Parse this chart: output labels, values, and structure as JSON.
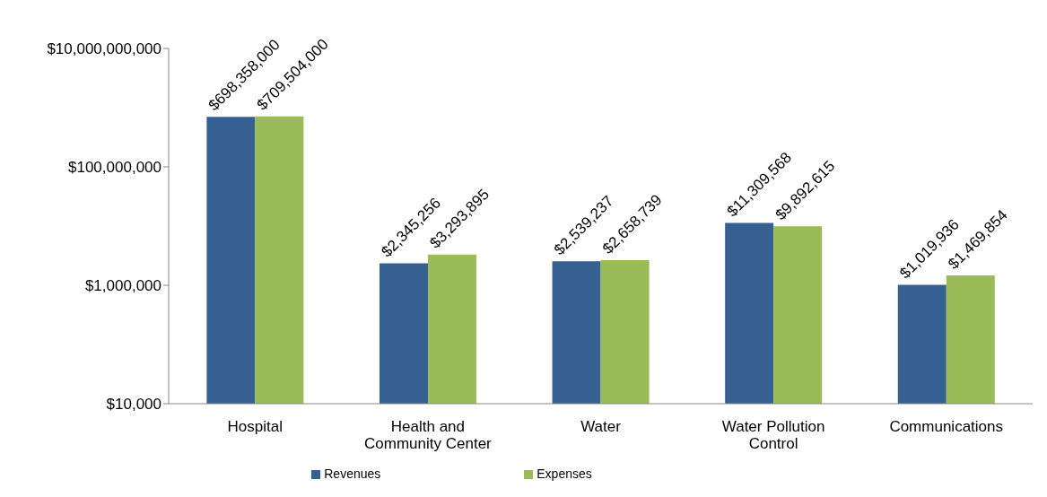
{
  "chart_data": {
    "type": "bar",
    "categories": [
      "Hospital",
      "Health and Community Center",
      "Water",
      "Water Pollution Control",
      "Communications"
    ],
    "series": [
      {
        "name": "Revenues",
        "color": "#366092",
        "values": [
          698358000,
          2345256,
          2539237,
          11309568,
          1019936
        ],
        "value_labels": [
          "$698,358,000",
          "$2,345,256",
          "$2,539,237",
          "$11,309,568",
          "$1,019,936"
        ]
      },
      {
        "name": "Expenses",
        "color": "#9bbb59",
        "values": [
          709504000,
          3293895,
          2658739,
          9892615,
          1469854
        ],
        "value_labels": [
          "$709,504,000",
          "$3,293,895",
          "$2,658,739",
          "$9,892,615",
          "$1,469,854"
        ]
      }
    ],
    "log": "y",
    "ylim": [
      10000,
      10000000000
    ],
    "yticks": [
      {
        "value": 10000,
        "label": "$10,000"
      },
      {
        "value": 1000000,
        "label": "$1,000,000"
      },
      {
        "value": 100000000,
        "label": "$100,000,000"
      },
      {
        "value": 10000000000,
        "label": "$10,000,000,000"
      }
    ],
    "grid": false,
    "legend": "bottom"
  }
}
